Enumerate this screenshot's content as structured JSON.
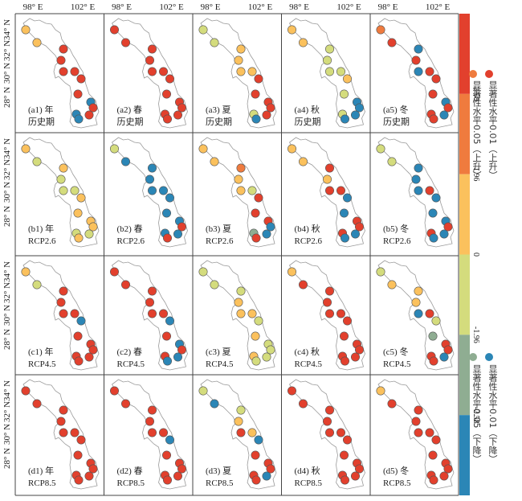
{
  "x_ticks": [
    "98° E",
    "102° E"
  ],
  "y_ticks": [
    "34° N",
    "32° N",
    "30° N",
    "28° N"
  ],
  "rows": [
    {
      "id": "a",
      "period": "历史期"
    },
    {
      "id": "b",
      "period": "RCP2.6"
    },
    {
      "id": "c",
      "period": "RCP4.5"
    },
    {
      "id": "d",
      "period": "RCP8.5"
    }
  ],
  "columns": [
    {
      "id": "1",
      "season": "年"
    },
    {
      "id": "2",
      "season": "春"
    },
    {
      "id": "3",
      "season": "夏"
    },
    {
      "id": "4",
      "season": "秋"
    },
    {
      "id": "5",
      "season": "冬"
    }
  ],
  "categories": {
    "R": {
      "label": "显著性水平0.01（上升）",
      "color": "#e2402d"
    },
    "O": {
      "label": "显著性水平0.05（上升）",
      "color": "#ef7b3e"
    },
    "Y": {
      "label": "0 ~ 1.96",
      "color": "#fbc15d"
    },
    "G": {
      "label": "-1.96 ~ 0",
      "color": "#d4dc7d"
    },
    "S": {
      "label": "显著性水平0.05（下降）",
      "color": "#8fad92"
    },
    "B": {
      "label": "显著性水平0.01（下降）",
      "color": "#2b86b6"
    }
  },
  "colorbar": {
    "segments": [
      "R",
      "O",
      "Y",
      "G",
      "S",
      "B"
    ],
    "tick_labels": [
      "2.58",
      "1.96",
      "0",
      "-1.96",
      "-2.58"
    ]
  },
  "legend": {
    "up": {
      "label_01": "显著性水平0.01（上升）",
      "label_05": "显著性水平0.05（上升）",
      "color_01": "#e2402d",
      "color_05": "#ef7b3e"
    },
    "down": {
      "label_01": "显著性水平0.01（下降）",
      "label_05": "显著性水平0.05（下降）",
      "color_01": "#2b86b6",
      "color_05": "#8fad92"
    }
  },
  "panels": {
    "a1": "YYRRRRRRBRRBB",
    "a2": "RRRRRRRRRRRRR",
    "a3": "GGYYYYRRRRRGB",
    "a4": "YYGGGGYGBBBGB",
    "a5": "ORBRBRRRBRBRR",
    "b1": "YGYGGGYYYYGGY",
    "b2": "GBBBBBBBBRBBR",
    "b3": "YYOYYGRRRBBSR",
    "b4": "YYRYRRBBRRBRB",
    "b5": "GGBBBRBBBRBRB",
    "c1": "YGRRRRBRRRRRR",
    "c2": "RRRRRRBRBRBRB",
    "c3": "GGGYYYGYGGGYG",
    "c4": "YRRRRRRRRRRRR",
    "c5": "GYYYBRGSRRBRR",
    "d1": "RRRRRRRRRRRRR",
    "d2": "RRRRRRBRRRRRR",
    "d3": "GBGYRYBRRRBRR",
    "d4": "RRRRRRRRRRRRR",
    "d5": "YRRRRRRRRRRRR"
  }
}
